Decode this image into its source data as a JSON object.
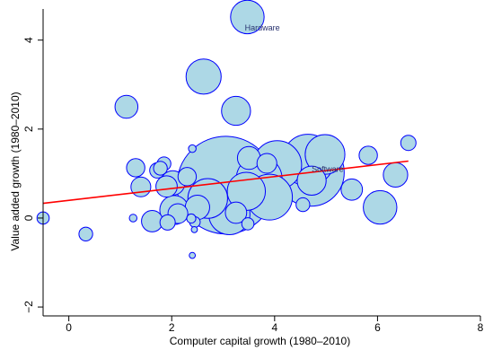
{
  "chart_data": {
    "type": "scatter",
    "title": "",
    "xlabel": "Computer capital growth (1980–2010)",
    "ylabel": "Value added growth (1980–2010)",
    "xlim": [
      -0.5,
      8
    ],
    "ylim": [
      -2.2,
      4.7
    ],
    "xticks": [
      0,
      2,
      4,
      6,
      8
    ],
    "yticks": [
      -2,
      0,
      2,
      4
    ],
    "xtick_labels": [
      "0",
      "2",
      "4",
      "6",
      "8"
    ],
    "ytick_labels": [
      "−2",
      "0",
      "2",
      "4"
    ],
    "grid": false,
    "legend": "none",
    "marker_fill": "#add8e6",
    "marker_edge": "#0000ff",
    "fit_line": {
      "color": "#ff0000",
      "x": [
        -0.5,
        6.6
      ],
      "y": [
        0.33,
        1.28
      ]
    },
    "annotations": [
      {
        "text": "Hardware",
        "x": 3.42,
        "y": 4.22
      },
      {
        "text": "Software",
        "x": 4.72,
        "y": 1.04
      }
    ],
    "points": [
      {
        "x": 3.47,
        "y": 4.52,
        "size": 2.2
      },
      {
        "x": 2.62,
        "y": 3.18,
        "size": 2.3
      },
      {
        "x": 3.25,
        "y": 2.41,
        "size": 1.9
      },
      {
        "x": 1.12,
        "y": 2.5,
        "size": 1.5
      },
      {
        "x": 2.4,
        "y": 1.56,
        "size": 0.5
      },
      {
        "x": 6.6,
        "y": 1.69,
        "size": 1.0
      },
      {
        "x": 5.82,
        "y": 1.41,
        "size": 1.2
      },
      {
        "x": 4.98,
        "y": 1.43,
        "size": 2.6
      },
      {
        "x": 4.65,
        "y": 1.3,
        "size": 3.4
      },
      {
        "x": 4.7,
        "y": 1.02,
        "size": 4.4
      },
      {
        "x": 4.05,
        "y": 1.19,
        "size": 3.2
      },
      {
        "x": 3.5,
        "y": 1.35,
        "size": 1.5
      },
      {
        "x": 3.85,
        "y": 1.23,
        "size": 1.3
      },
      {
        "x": 1.3,
        "y": 1.13,
        "size": 1.2
      },
      {
        "x": 1.72,
        "y": 1.07,
        "size": 1.0
      },
      {
        "x": 1.85,
        "y": 1.22,
        "size": 0.9
      },
      {
        "x": 1.78,
        "y": 1.12,
        "size": 0.9
      },
      {
        "x": 2.3,
        "y": 0.93,
        "size": 1.2
      },
      {
        "x": 2.02,
        "y": 0.79,
        "size": 1.6
      },
      {
        "x": 1.9,
        "y": 0.71,
        "size": 1.4
      },
      {
        "x": 1.4,
        "y": 0.7,
        "size": 1.3
      },
      {
        "x": 3.05,
        "y": 0.74,
        "size": 6.4
      },
      {
        "x": 3.7,
        "y": 0.88,
        "size": 3.0
      },
      {
        "x": 3.45,
        "y": 0.6,
        "size": 2.5
      },
      {
        "x": 3.9,
        "y": 0.47,
        "size": 3.0
      },
      {
        "x": 2.7,
        "y": 0.44,
        "size": 2.6
      },
      {
        "x": 4.72,
        "y": 0.84,
        "size": 1.9
      },
      {
        "x": 5.5,
        "y": 0.64,
        "size": 1.4
      },
      {
        "x": 6.35,
        "y": 0.97,
        "size": 1.6
      },
      {
        "x": 6.05,
        "y": 0.24,
        "size": 2.2
      },
      {
        "x": 4.55,
        "y": 0.3,
        "size": 0.9
      },
      {
        "x": 3.12,
        "y": 0.09,
        "size": 2.7
      },
      {
        "x": 3.25,
        "y": 0.12,
        "size": 1.4
      },
      {
        "x": 2.5,
        "y": 0.24,
        "size": 1.6
      },
      {
        "x": 2.12,
        "y": 0.1,
        "size": 1.3
      },
      {
        "x": 2.05,
        "y": 0.18,
        "size": 1.9
      },
      {
        "x": 1.62,
        "y": -0.07,
        "size": 1.4
      },
      {
        "x": 1.92,
        "y": -0.1,
        "size": 1.0
      },
      {
        "x": 2.38,
        "y": -0.01,
        "size": 0.6
      },
      {
        "x": 2.45,
        "y": -0.09,
        "size": 0.7
      },
      {
        "x": 2.44,
        "y": -0.26,
        "size": 0.4
      },
      {
        "x": 3.48,
        "y": -0.13,
        "size": 0.8
      },
      {
        "x": 1.25,
        "y": 0.0,
        "size": 0.5
      },
      {
        "x": 0.33,
        "y": -0.36,
        "size": 0.9
      },
      {
        "x": -0.5,
        "y": 0.0,
        "size": 0.8
      },
      {
        "x": 2.4,
        "y": -0.84,
        "size": 0.4
      }
    ]
  }
}
